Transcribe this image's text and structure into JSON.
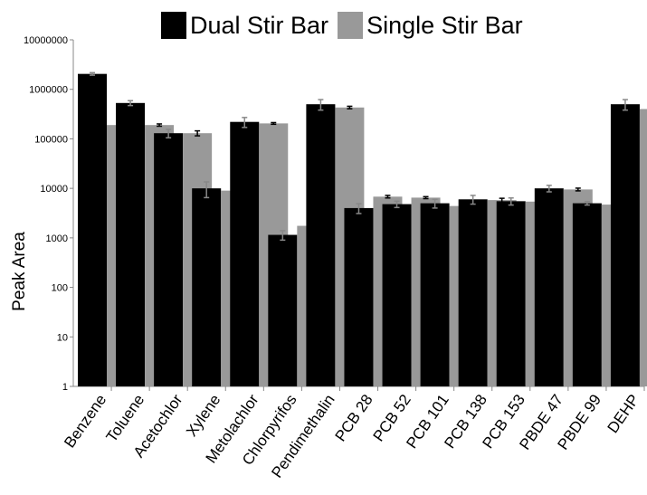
{
  "legend": {
    "dual_label": "Dual Stir Bar",
    "single_label": "Single Stir Bar"
  },
  "colors": {
    "dual": "#000000",
    "single": "#999999",
    "axis": "#888888",
    "error_bar_on_dark": "#888888",
    "error_bar_on_light": "#000000"
  },
  "chart_data": {
    "type": "bar",
    "title": "",
    "xlabel": "",
    "ylabel": "Peak Area",
    "yscale": "log",
    "ylim": [
      1,
      10000000
    ],
    "yticks": [
      "1",
      "10",
      "100",
      "1000",
      "10000",
      "100000",
      "1000000",
      "10000000"
    ],
    "grid": false,
    "legend_position": "top",
    "categories": [
      "Benzene",
      "Toluene",
      "Acetochlor",
      "Xylene",
      "Metolachlor",
      "Chlorpyrifos",
      "Pendimethalin",
      "PCB 28",
      "PCB 52",
      "PCB 101",
      "PCB 138",
      "PCB 153",
      "PBDE 47",
      "PBDE 99",
      "DEHP"
    ],
    "series": [
      {
        "name": "Dual Stir Bar",
        "values": [
          2050000,
          530000,
          130000,
          10000,
          220000,
          1150,
          500000,
          4000,
          4800,
          5000,
          6000,
          5500,
          10000,
          5000,
          500000
        ],
        "errors": [
          120000,
          60000,
          25000,
          3500,
          50000,
          250,
          120000,
          900,
          700,
          1000,
          1200,
          900,
          1500,
          400,
          120000
        ]
      },
      {
        "name": "Single Stir Bar",
        "values": [
          190000,
          190000,
          130000,
          9000,
          205000,
          1750,
          430000,
          6800,
          6500,
          4400,
          5800,
          5400,
          9500,
          4700,
          400000
        ],
        "errors": [
          25000,
          10000,
          15000,
          1000,
          8000,
          120,
          25000,
          400,
          300,
          300,
          500,
          300,
          600,
          300,
          60000
        ]
      }
    ]
  }
}
